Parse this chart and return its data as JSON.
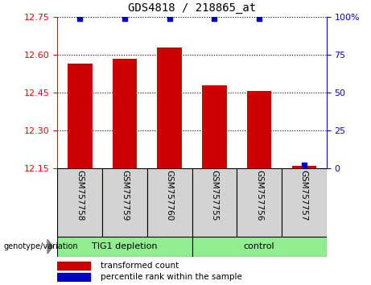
{
  "title": "GDS4818 / 218865_at",
  "samples": [
    "GSM757758",
    "GSM757759",
    "GSM757760",
    "GSM757755",
    "GSM757756",
    "GSM757757"
  ],
  "groups": [
    "TIG1 depletion",
    "TIG1 depletion",
    "TIG1 depletion",
    "control",
    "control",
    "control"
  ],
  "bar_values": [
    12.565,
    12.585,
    12.63,
    12.48,
    12.455,
    12.16
  ],
  "percentile_values": [
    99,
    99,
    99,
    99,
    99,
    2
  ],
  "bar_color": "#cc0000",
  "dot_color": "#0000cc",
  "ylim_left": [
    12.15,
    12.75
  ],
  "ylim_right": [
    0,
    100
  ],
  "yticks_left": [
    12.15,
    12.3,
    12.45,
    12.6,
    12.75
  ],
  "yticks_right": [
    0,
    25,
    50,
    75,
    100
  ],
  "legend_items": [
    "transformed count",
    "percentile rank within the sample"
  ],
  "bar_width": 0.55,
  "base_value": 12.15,
  "light_green": "#90ee90",
  "gray_box": "#d3d3d3"
}
